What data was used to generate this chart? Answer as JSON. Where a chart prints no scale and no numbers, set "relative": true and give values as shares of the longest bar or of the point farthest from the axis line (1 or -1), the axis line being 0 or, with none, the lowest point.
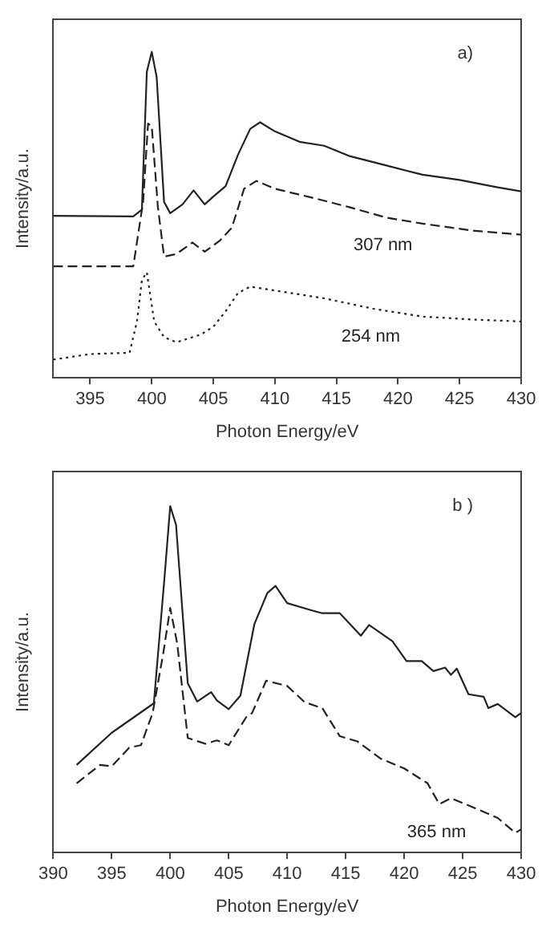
{
  "chart_data": [
    {
      "type": "line",
      "title": "a)",
      "xlabel": "Photon Energy/eV",
      "ylabel": "Intensity/a.u.",
      "relative": true,
      "xlim": [
        392,
        430
      ],
      "xticks": [
        395,
        400,
        405,
        410,
        415,
        420,
        425,
        430
      ],
      "grid": false,
      "legend": false,
      "marker": "none",
      "series": [
        {
          "color": "#222222",
          "line_style": "solid",
          "x": [
            392,
            398.5,
            399.2,
            399.6,
            400,
            400.4,
            401,
            401.5,
            402.5,
            403.4,
            404.3,
            405,
            406,
            407,
            408,
            408.8,
            410,
            412,
            414,
            416,
            419,
            422,
            425,
            428,
            430
          ],
          "values": [
            0.497,
            0.495,
            0.516,
            0.939,
            1.0,
            0.923,
            0.54,
            0.505,
            0.532,
            0.575,
            0.532,
            0.556,
            0.588,
            0.684,
            0.764,
            0.784,
            0.756,
            0.724,
            0.712,
            0.681,
            0.652,
            0.623,
            0.607,
            0.585,
            0.572
          ]
        },
        {
          "name": "307 nm",
          "color": "#222222",
          "line_style": "dashed",
          "x": [
            392,
            398.5,
            399.3,
            399.7,
            400,
            400.5,
            401,
            402,
            403.3,
            404.3,
            405.5,
            406.5,
            407.5,
            408.5,
            410,
            413,
            416,
            419,
            422,
            426,
            430
          ],
          "values": [
            0.342,
            0.342,
            0.54,
            0.78,
            0.772,
            0.524,
            0.372,
            0.38,
            0.415,
            0.387,
            0.42,
            0.46,
            0.58,
            0.604,
            0.58,
            0.553,
            0.524,
            0.492,
            0.473,
            0.452,
            0.439
          ]
        },
        {
          "name": "254 nm",
          "color": "#222222",
          "line_style": "dotted",
          "x": [
            392,
            395,
            398.2,
            398.8,
            399.2,
            399.6,
            400.2,
            401,
            402,
            404,
            405,
            406,
            407,
            408,
            410,
            414,
            418,
            422,
            426,
            430
          ],
          "values": [
            0.056,
            0.073,
            0.077,
            0.173,
            0.3,
            0.324,
            0.173,
            0.125,
            0.109,
            0.133,
            0.157,
            0.204,
            0.26,
            0.28,
            0.268,
            0.244,
            0.212,
            0.188,
            0.179,
            0.173
          ]
        }
      ]
    },
    {
      "type": "line",
      "title": "b )",
      "xlabel": "Photon Energy/eV",
      "ylabel": "Intensity/a.u.",
      "relative": true,
      "xlim": [
        390,
        430
      ],
      "xticks": [
        390,
        395,
        400,
        405,
        410,
        415,
        420,
        425,
        430
      ],
      "grid": false,
      "legend": false,
      "marker": "none",
      "series": [
        {
          "color": "#222222",
          "line_style": "solid",
          "x": [
            392,
            395,
            398.6,
            399.5,
            400,
            400.5,
            401.5,
            402.3,
            403.5,
            404,
            405,
            406,
            407.2,
            408.3,
            409,
            410,
            412,
            413,
            414.5,
            416.3,
            417,
            419,
            420.2,
            421.5,
            422.5,
            423.5,
            424,
            424.5,
            425.5,
            426.8,
            427.2,
            428,
            429.5,
            430
          ],
          "values": [
            0.253,
            0.346,
            0.431,
            0.789,
            1.0,
            0.946,
            0.489,
            0.436,
            0.463,
            0.439,
            0.414,
            0.453,
            0.66,
            0.749,
            0.77,
            0.72,
            0.7,
            0.691,
            0.691,
            0.626,
            0.657,
            0.61,
            0.553,
            0.553,
            0.524,
            0.534,
            0.513,
            0.531,
            0.457,
            0.45,
            0.417,
            0.429,
            0.391,
            0.403
          ]
        },
        {
          "name": "365 nm",
          "color": "#222222",
          "line_style": "dashed",
          "x": [
            392,
            394,
            395,
            396.5,
            397.5,
            398.5,
            399.4,
            400,
            400.6,
            401.5,
            403,
            404,
            405,
            406.5,
            407,
            408.2,
            410,
            411.5,
            413,
            414.5,
            416,
            418,
            420,
            422,
            423,
            424,
            426,
            428,
            429.5,
            430
          ],
          "values": [
            0.2,
            0.253,
            0.249,
            0.303,
            0.31,
            0.403,
            0.574,
            0.706,
            0.603,
            0.331,
            0.314,
            0.324,
            0.31,
            0.391,
            0.403,
            0.496,
            0.481,
            0.434,
            0.417,
            0.336,
            0.321,
            0.271,
            0.243,
            0.2,
            0.14,
            0.157,
            0.129,
            0.1,
            0.057,
            0.067
          ]
        }
      ]
    }
  ]
}
